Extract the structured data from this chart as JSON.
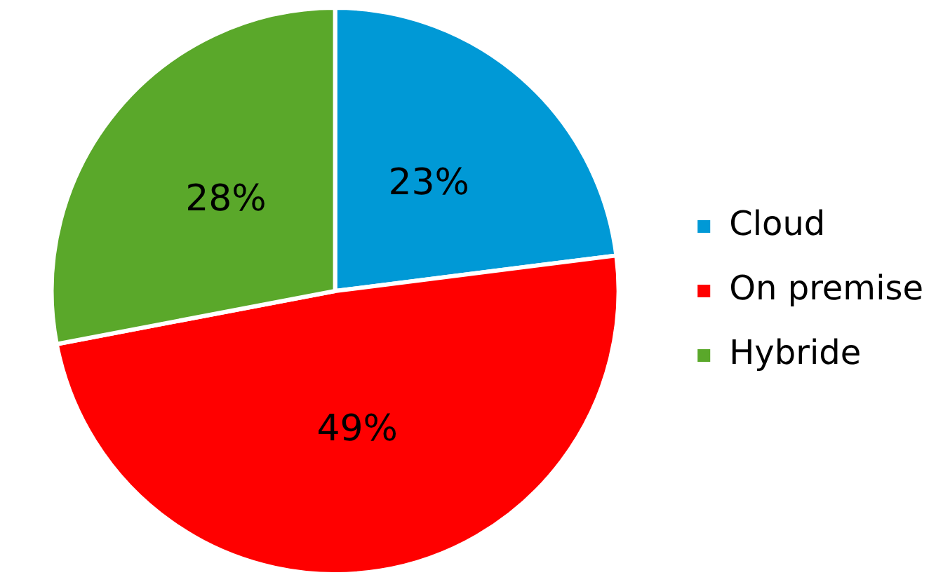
{
  "chart_data": {
    "type": "pie",
    "categories": [
      "Cloud",
      "On premise",
      "Hybride"
    ],
    "values": [
      23,
      49,
      28
    ],
    "colors": [
      "#0099d6",
      "#ff0000",
      "#5aa82a"
    ],
    "value_labels": [
      "23%",
      "49%",
      "28%"
    ],
    "legend": "right"
  }
}
